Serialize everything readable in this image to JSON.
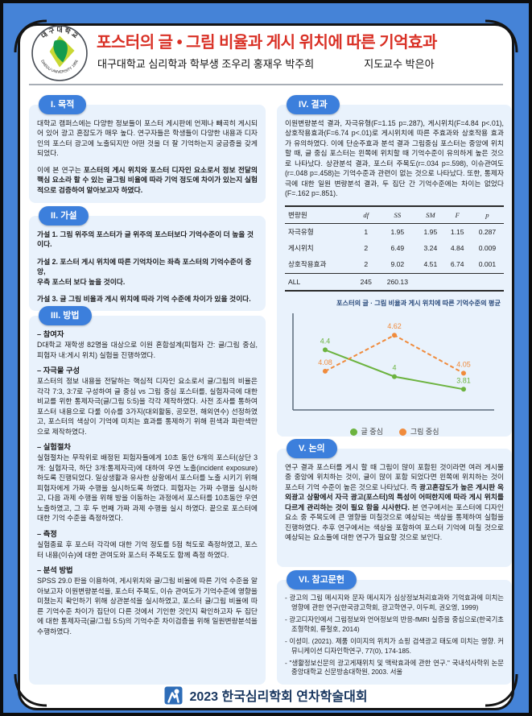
{
  "header": {
    "title": "포스터의 글 • 그림 비율과 게시 위치에 따른 기억효과",
    "affiliation": "대구대학교 심리학과 학부생 조우리 홍재우 박주희",
    "advisor": "지도교수 박은아",
    "logo_top_text": "대구대학교",
    "logo_bottom_text": "DAEGU UNIVERSITY 1956"
  },
  "colors": {
    "background_blue": "#4583d7",
    "section_box": "#e9f2fc",
    "pill_blue": "#3c7fdc",
    "title_red": "#d93025",
    "footer_navy": "#17355e",
    "series_text_green": "#6cb33f",
    "series_image_orange": "#f08b3c"
  },
  "sections": {
    "purpose": {
      "label": "I. 목적",
      "p1": "대학교 캠퍼스에는 다양한 정보들이 포스터 게시판에 언제나 빼곡히 게시되어 있어 광고 혼잡도가 매우 높다. 연구자들은 학생들이 다양한 내용과 디자인의 포스터 광고에 노출되지만 어떤 것을 더 잘 기억하는지 궁금증을 갖게 되었다.",
      "p2_lead": "이에 본 연구는 ",
      "p2_bold": "포스터의 게시 위치와 포스터 디자인 요소로서 정보 전달의 핵심 요소라 할 수 있는 글그림 비율에 따라 기억 정도에 차이가 있는지 실험적으로 검증하여 알아보고자 하였다."
    },
    "hypothesis": {
      "label": "II. 가설",
      "items": [
        "가설 1. 그림 위주의 포스터가 글 위주의 포스터보다 기억수준이 더 높을 것이다.",
        "가설 2. 포스터 게시 위치에 따른 기억차이는 좌측 포스터의 기억수준이 중앙,\n            우측 포스터 보다 높을 것이다.",
        "가설 3. 글 그림 비율과 게시 위치에 따라 기억 수준에 차이가 있을 것이다."
      ]
    },
    "method": {
      "label": "III. 방법",
      "blocks": [
        {
          "head": "– 참여자",
          "text": "D대학교 재학생 82명을 대상으로 이원 혼합설계(피험자 간: 글/그림 중심, 피험자 내:게시 위치) 실험을 진행하였다."
        },
        {
          "head": "– 자극물 구성",
          "text": "포스터의 정보 내용을 전달하는 핵심적 디자인 요소로서 글/그림의 비율은 각각 7:3, 3:7로 구성하여 글 중심 vs 그림 중심 포스터를, 실험자극에 대한 비교를 위한 통제자극(글/그림 5:5)을 각각 제작하였다. 사전 조사를 통하여 포스터 내용으로 다룰 이슈를 3가지(대외활동, 공모전, 해외연수) 선정하였고, 포스터의 색상이 기억에 미치는 효과를 통제하기 위해 흰색과 파란색만으로 제작하였다."
        },
        {
          "head": "– 실험절차",
          "text": "실험절차는 무작위로 배정된 피험자들에게 10초 동안 6개의 포스터(상단 3개: 실험자극, 하단 3개:통제자극)에 대하여 우연 노출(incident exposure)하도록 진행되었다. 일상생활과 유사한 상황에서 포스터를 노출 시키기 위해 피험자에게 가짜 수행을 실시하도록 하였다. 피험자는 가짜 수행을 실시하고, 다음 과제 수행을 위해 방을 이동하는 과정에서 포스터를 10초동안 우연 노출하였고, 그 후 두 번째 가짜 과제 수행을 실시 하였다. 끝으로 포스터에 대한 기억 수준을 측정하였다."
        },
        {
          "head": "– 측정",
          "text": "실험종료 후 포스터 각각에 대한 기억 정도를 5점 척도로 측정하였고, 포스터 내용(이슈)에 대한 관여도와 포스터 주목도도 함께 측정 하였다."
        },
        {
          "head": "– 분석 방법",
          "text": "SPSS 29.0 판을 이용하여, 게시위치와 글/그림 비율에 따른 기억 수준을 알아보고자 이원변량분석을, 포스터 주목도, 이슈 관여도가 기억수준에 영향을 미쳤는지 확인하기 위해 상관분석을 실시하였고, 포스터 글/그림 비율에 따른 기억수준 차이가 집단이 다른 것에서 기인한 것인지 확인하고자 두 집단에 대한 통제자극(글/그림 5:5)의 기억수준 차이검증을 위해 일원변량분석을 수행하였다."
        }
      ]
    },
    "results": {
      "label": "IV. 결과",
      "text": "이원변량분석 결과, 자극유형(F=1.15 p=.287), 게시위치(F=4.84 p<.01), 상호작용효과(F=6.74 p<.01)로 게시위치에 따른 주효과와 상호작용 효과가 유의하였다. 이에 단순주효과 분석 결과 그림중심 포스터는 중앙에 위치할 때, 글 중심 포스터는 왼쪽에 위치할 때 기억수준이 유의하게 높은 것으로 나타났다. 상관분석 결과, 포스터 주목도(r=.034 p=.598), 이슈관여도(r=.048 p=.458)는 기억수준과 관련이 없는 것으로 나타났다. 또한, 통제자극에 대한 일원 변량분석 결과, 두 집단 간 기억수준에는 차이는 없었다(F=.162 p=.851).",
      "table": {
        "headers": [
          "변량원",
          "df",
          "SS",
          "SM",
          "F",
          "p"
        ],
        "rows": [
          [
            "자극유형",
            "1",
            "1.95",
            "1.95",
            "1.15",
            "0.287"
          ],
          [
            "게시위치",
            "2",
            "6.49",
            "3.24",
            "4.84",
            "0.009"
          ],
          [
            "상호작용효과",
            "2",
            "9.02",
            "4.51",
            "6.74",
            "0.001"
          ],
          [
            "ALL",
            "245",
            "260.13",
            "",
            "",
            ""
          ]
        ]
      }
    },
    "discussion": {
      "label": "V. 논의",
      "lead": "연구 결과 포스터를 게시 할 때 그림이 많이 포함된 것이라면 여러 게시물 중 중앙에 위치하는 것이, 글이 많이 포함 되었다면 왼쪽에 위치하는 것이 포스터 기억 수준이 높은 것으로 나타났다. 즉 ",
      "bold": "광고혼잡도가 높은 게시판 옥외광고 상황에서 자극 광고(포스터)의 특성이 어떠한지에 따라 게시 위치를 다르게 관리하는 것이 필요 함을 시사한다.",
      "tail": " 본 연구에서는 포스터에 디자인 요소 중 주목도에 큰 영향을 미칠것으로 예상되는 색상을 통제하여 실험을 진행하였다. 추후 연구에서는 색상을 포함하여 포스터 기억에 미칠 것으로 예상되는 요소들에 대한 연구가 필요할 것으로 보인다."
    },
    "references": {
      "label": "VI. 참고문헌",
      "items": [
        "- 광고의 그림 메시지와 문자 메시지가 심상정보처리효과와 기억효과에 미치는 영향에 관한 연구(한국광고학회, 광고학연구, 이두희, 권오영, 1999)",
        "- 광고디자인에서 그림정보와 언어정보의 반응-fMRI 실증을 중심으로(한국기초조형학회, 류철호, 2014)",
        "- 이성미. (2021). 제품 이미지의 위치가 쇼핑 검색광고 태도에 미치는 영향. 커뮤니케이션 디자인학연구, 77(0), 174-185.",
        "- \"생활정보신문의 광고게재위치 및 맥락효과에 관한 연구.\" 국내석사학위 논문 중앙대학교 신문방송대학원, 2003. 서울"
      ]
    }
  },
  "chart_data": {
    "type": "line",
    "title": "포스터의 글 · 그림 비율과 게시 위치에 따른 기억수준의 평균",
    "categories": [
      "",
      "",
      ""
    ],
    "series": [
      {
        "name": "글 중심",
        "color": "#6cb33f",
        "style": "solid",
        "values": [
          4.4,
          4.0,
          3.81
        ],
        "labels": [
          "4.4",
          "4",
          "3.81"
        ]
      },
      {
        "name": "그림 중심",
        "color": "#f08b3c",
        "style": "dashed",
        "values": [
          4.08,
          4.62,
          4.05
        ],
        "labels": [
          "4.08",
          "4.62",
          "4.05"
        ]
      }
    ],
    "ylim": [
      3.5,
      4.9
    ],
    "grid": false,
    "legend_position": "bottom",
    "axes_visible": "left and bottom lines only, no tick labels"
  },
  "footer": {
    "label": "2023 한국심리학회 연차학술대회"
  }
}
